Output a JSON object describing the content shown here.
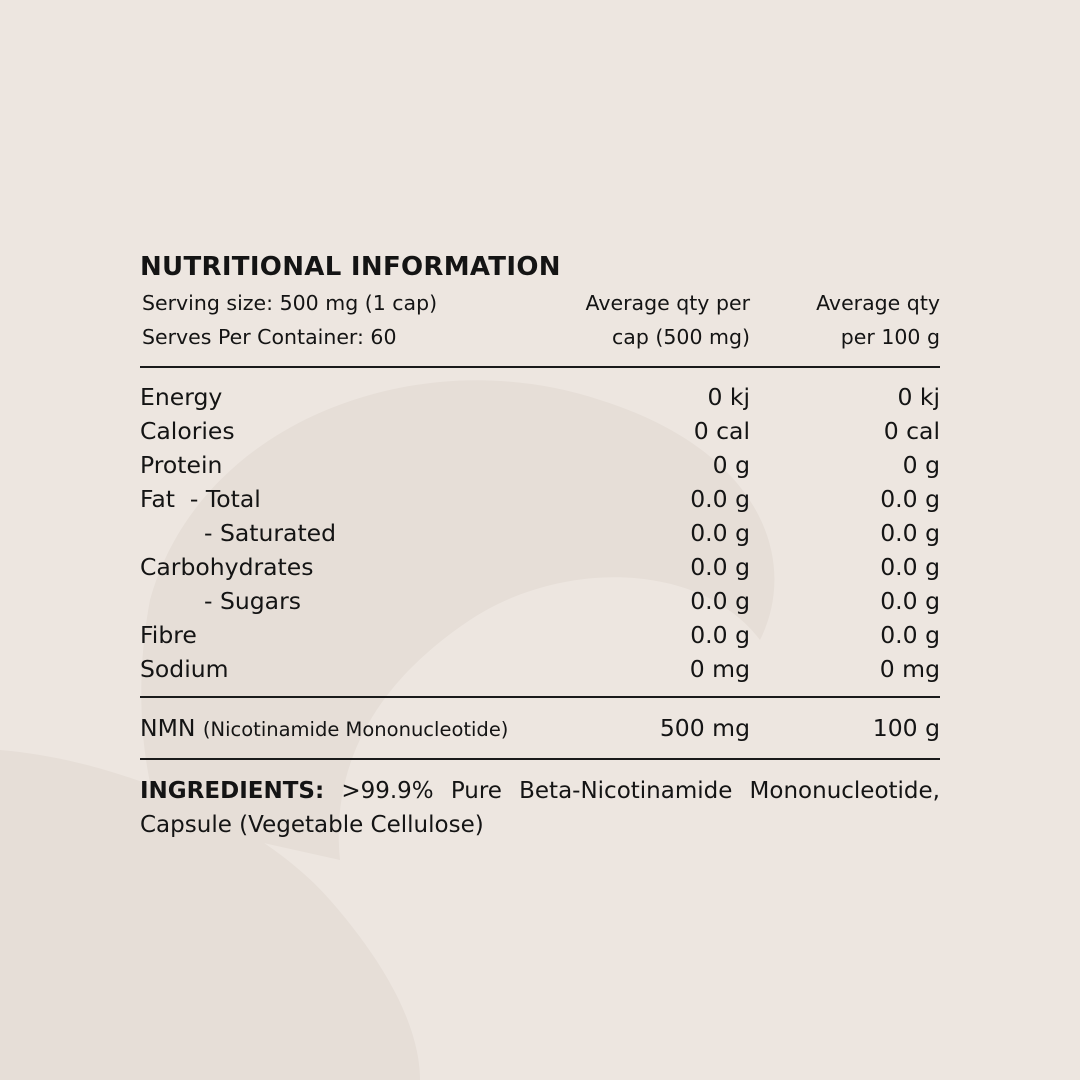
{
  "colors": {
    "background": "#ede6e0",
    "swirl": "#e5ddd6",
    "text": "#141414"
  },
  "title": "NUTRITIONAL INFORMATION",
  "header": {
    "serving_size": "Serving size: 500 mg (1 cap)",
    "serves": "Serves Per Container: 60",
    "col2_line1": "Average qty per",
    "col2_line2": "cap (500 mg)",
    "col3_line1": "Average qty",
    "col3_line2": "per 100 g"
  },
  "rows": [
    {
      "name": "Energy",
      "per_cap": "0 kj",
      "per_100g": "0 kj"
    },
    {
      "name": "Calories",
      "per_cap": "0 cal",
      "per_100g": "0 cal"
    },
    {
      "name": "Protein",
      "per_cap": "0 g",
      "per_100g": "0 g"
    },
    {
      "name": "Fat  - Total",
      "per_cap": "0.0 g",
      "per_100g": "0.0 g"
    },
    {
      "name": "- Saturated",
      "per_cap": "0.0 g",
      "per_100g": "0.0 g",
      "indent": true
    },
    {
      "name": "Carbohydrates",
      "per_cap": "0.0 g",
      "per_100g": "0.0 g"
    },
    {
      "name": "- Sugars",
      "per_cap": "0.0 g",
      "per_100g": "0.0 g",
      "indent": true
    },
    {
      "name": "Fibre",
      "per_cap": "0.0 g",
      "per_100g": "0.0 g"
    },
    {
      "name": "Sodium",
      "per_cap": "0 mg",
      "per_100g": "0 mg"
    }
  ],
  "nmn": {
    "name": "NMN",
    "detail": "(Nicotinamide Mononucleotide)",
    "per_cap": "500 mg",
    "per_100g": "100 g"
  },
  "ingredients": {
    "label": "INGREDIENTS:",
    "text": " >99.9% Pure Beta-Nicotinamide Mononu­cleotide, Capsule (Vegetable Cellulose)"
  }
}
